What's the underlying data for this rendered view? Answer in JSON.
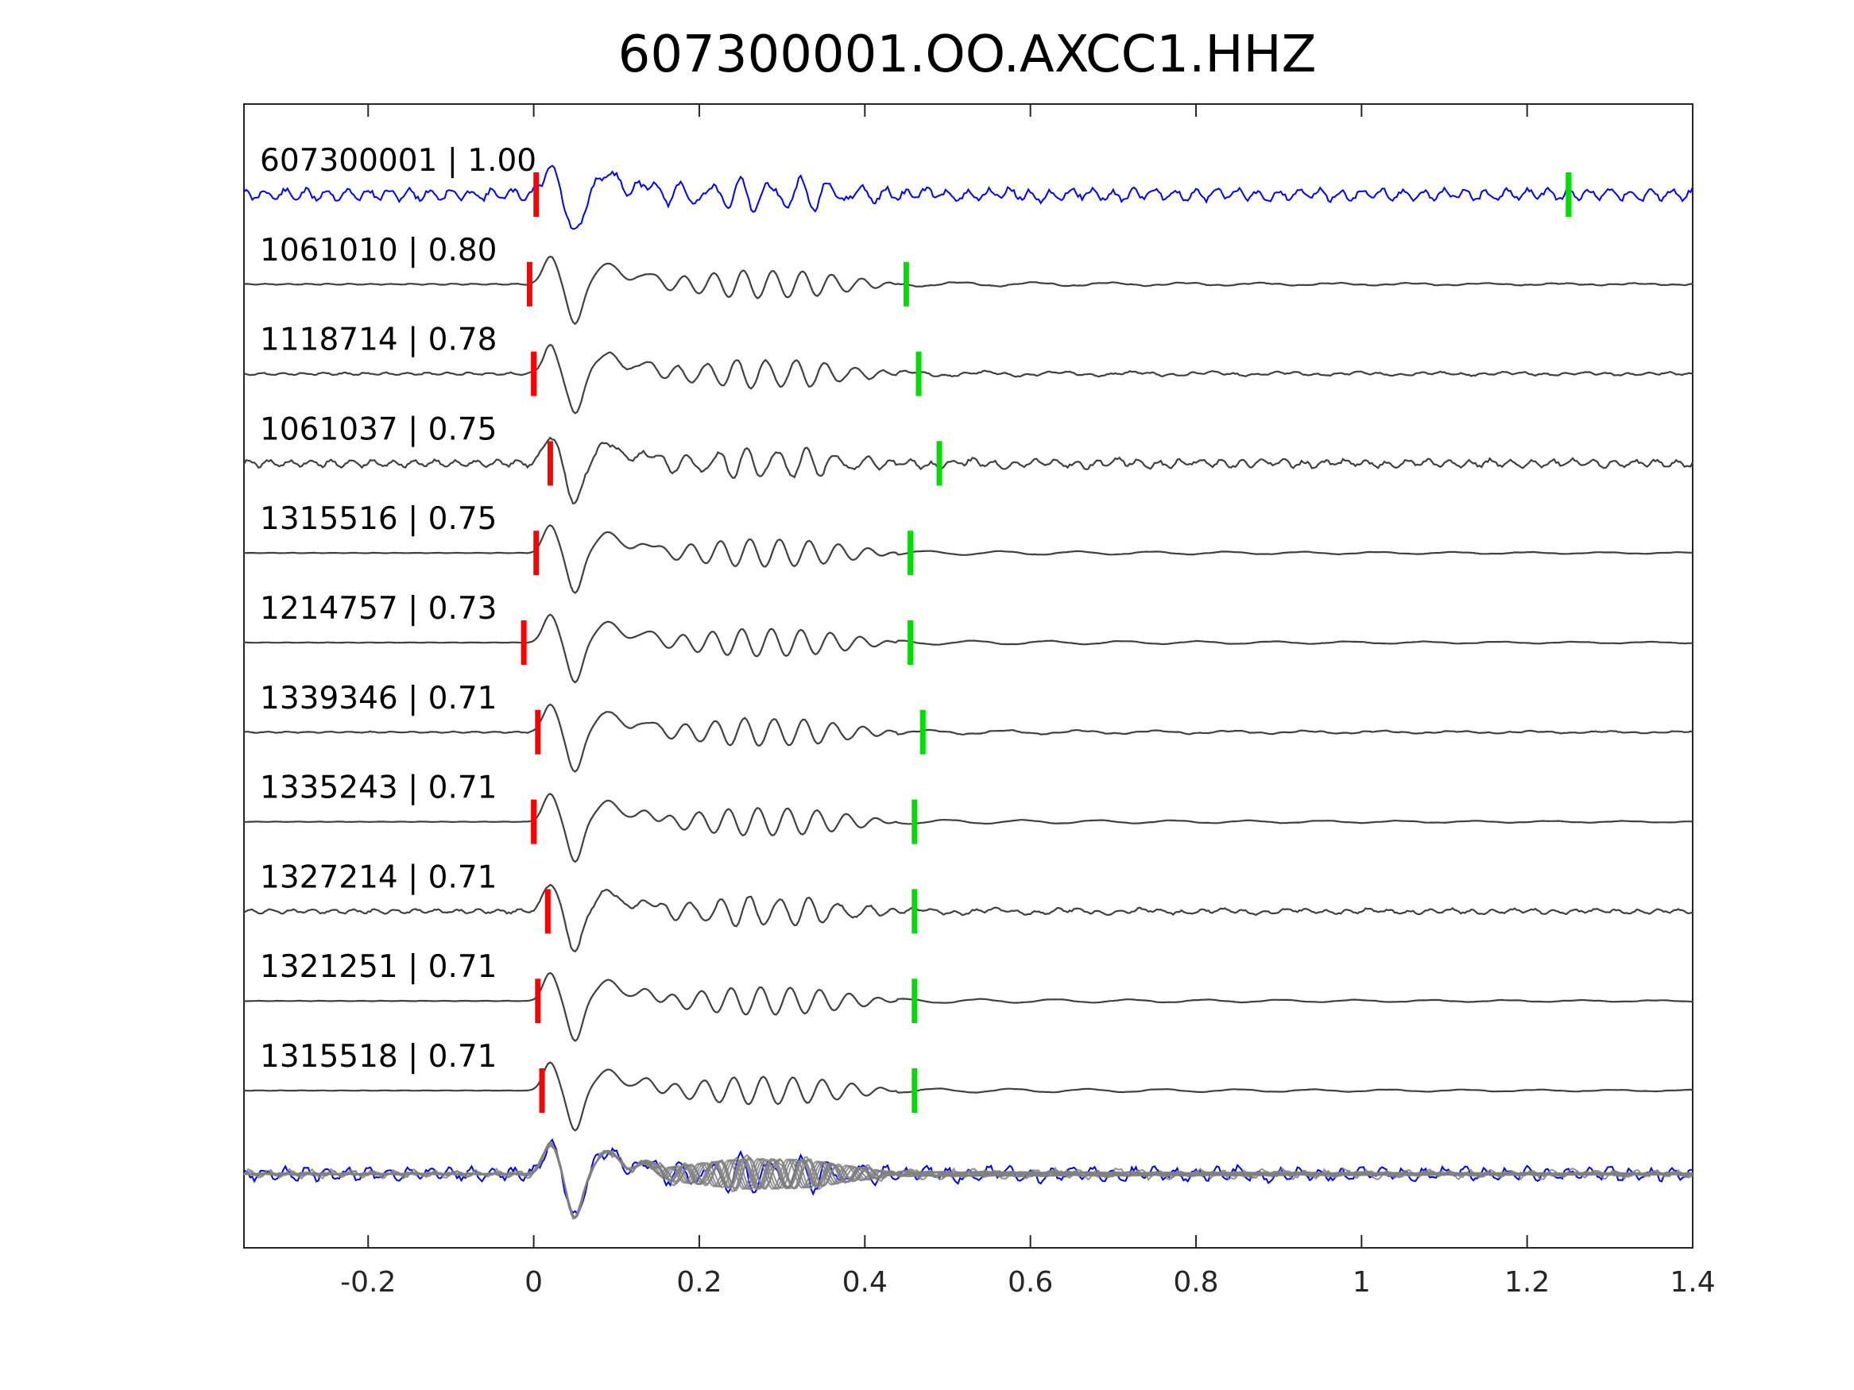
{
  "chart_data": {
    "type": "line",
    "title": "607300001.OO.AXCC1.HHZ",
    "xlabel": "",
    "ylabel": "",
    "xlim": [
      -0.35,
      1.4
    ],
    "xticks": [
      {
        "value": -0.2,
        "label": "-0.2"
      },
      {
        "value": 0,
        "label": "0"
      },
      {
        "value": 0.2,
        "label": "0.2"
      },
      {
        "value": 0.4,
        "label": "0.4"
      },
      {
        "value": 0.6,
        "label": "0.6"
      },
      {
        "value": 0.8,
        "label": "0.8"
      },
      {
        "value": 1,
        "label": "1"
      },
      {
        "value": 1.2,
        "label": "1.2"
      },
      {
        "value": 1.4,
        "label": "1.4"
      }
    ],
    "grid": false,
    "colors": {
      "target_trace": "#0000ff",
      "template_trace": "#404040",
      "stack_trace": "#808080",
      "p_pick": "#ff0000",
      "s_pick": "#00dd00",
      "axes": "#262626"
    },
    "traces": [
      {
        "label": "607300001 | 1.00",
        "event_id": "607300001",
        "correlation": 1.0,
        "p_pick": 0.003,
        "s_pick": 1.25,
        "color": "blue",
        "noise": 0.55,
        "seed": 11
      },
      {
        "label": "1061010 | 0.80",
        "event_id": "1061010",
        "correlation": 0.8,
        "p_pick": -0.005,
        "s_pick": 0.45,
        "color": "dark",
        "noise": 0.05,
        "seed": 23
      },
      {
        "label": "1118714 | 0.78",
        "event_id": "1118714",
        "correlation": 0.78,
        "p_pick": 0.0,
        "s_pick": 0.465,
        "color": "dark",
        "noise": 0.12,
        "seed": 37
      },
      {
        "label": "1061037 | 0.75",
        "event_id": "1061037",
        "correlation": 0.75,
        "p_pick": 0.02,
        "s_pick": 0.49,
        "color": "dark",
        "noise": 0.35,
        "seed": 41
      },
      {
        "label": "1315516 | 0.75",
        "event_id": "1315516",
        "correlation": 0.75,
        "p_pick": 0.003,
        "s_pick": 0.455,
        "color": "dark",
        "noise": 0.02,
        "seed": 53
      },
      {
        "label": "1214757 | 0.73",
        "event_id": "1214757",
        "correlation": 0.73,
        "p_pick": -0.012,
        "s_pick": 0.455,
        "color": "dark",
        "noise": 0.02,
        "seed": 61
      },
      {
        "label": "1339346 | 0.71",
        "event_id": "1339346",
        "correlation": 0.71,
        "p_pick": 0.005,
        "s_pick": 0.47,
        "color": "dark",
        "noise": 0.06,
        "seed": 73
      },
      {
        "label": "1335243 | 0.71",
        "event_id": "1335243",
        "correlation": 0.71,
        "p_pick": 0.0,
        "s_pick": 0.46,
        "color": "dark",
        "noise": 0.02,
        "seed": 89
      },
      {
        "label": "1327214 | 0.71",
        "event_id": "1327214",
        "correlation": 0.71,
        "p_pick": 0.017,
        "s_pick": 0.46,
        "color": "dark",
        "noise": 0.2,
        "seed": 97
      },
      {
        "label": "1321251 | 0.71",
        "event_id": "1321251",
        "correlation": 0.71,
        "p_pick": 0.005,
        "s_pick": 0.46,
        "color": "dark",
        "noise": 0.02,
        "seed": 101
      },
      {
        "label": "1315518 | 0.71",
        "event_id": "1315518",
        "correlation": 0.71,
        "p_pick": 0.01,
        "s_pick": 0.46,
        "color": "dark",
        "noise": 0.02,
        "seed": 113
      }
    ],
    "stack": {
      "label": "",
      "description": "overlay of all traces"
    }
  }
}
